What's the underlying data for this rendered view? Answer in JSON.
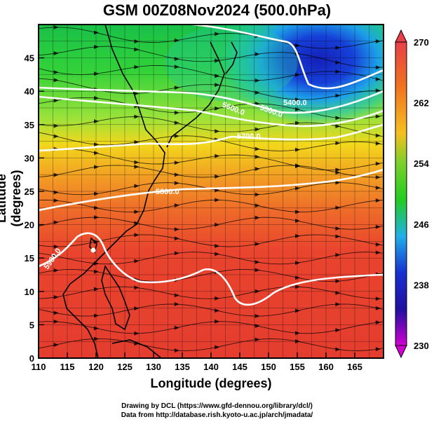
{
  "title": "GSM 00Z08Nov2024 (500.0hPa)",
  "axes": {
    "xlabel": "Longitude (degrees)",
    "ylabel": "Latitude  (degrees)",
    "x_ticks": [
      "110",
      "115",
      "120",
      "125",
      "130",
      "135",
      "140",
      "145",
      "150",
      "155",
      "160",
      "165"
    ],
    "y_ticks": [
      "0",
      "5",
      "10",
      "15",
      "20",
      "25",
      "30",
      "35",
      "40",
      "45"
    ]
  },
  "colorbar": {
    "labels": [
      "270",
      "262",
      "254",
      "246",
      "238",
      "230"
    ],
    "colors": [
      "#e8404a",
      "#f07020",
      "#f5c020",
      "#22cc22",
      "#20b0e8",
      "#1830d0",
      "#2010a0",
      "#d000d0"
    ]
  },
  "contours": [
    {
      "label": "5400.0"
    },
    {
      "label": "5500.0"
    },
    {
      "label": "5600.0"
    },
    {
      "label": "5700.0"
    },
    {
      "label": "5800.0"
    },
    {
      "label": "5900.0"
    }
  ],
  "credits": {
    "line1": "Drawing by DCL (https://www.gfd-dennou.org/library/dcl/)",
    "line2": "Data from http://database.rish.kyoto-u.ac.jp/arch/jmadata/"
  },
  "chart_data": {
    "type": "heatmap",
    "title": "GSM 00Z08Nov2024 (500.0hPa)",
    "xlabel": "Longitude (degrees)",
    "ylabel": "Latitude  (degrees)",
    "xlim": [
      110,
      170
    ],
    "ylim": [
      0,
      50
    ],
    "colorbar_range": [
      230,
      270
    ],
    "field_by_latitude": {
      "lat": [
        0,
        10,
        20,
        25,
        30,
        35,
        40,
        45,
        50
      ],
      "value": [
        268,
        268,
        267,
        265,
        262,
        256,
        252,
        250,
        248
      ]
    },
    "cold_center": {
      "lon": 158,
      "lat": 47,
      "value": 236
    },
    "grid": true
  }
}
